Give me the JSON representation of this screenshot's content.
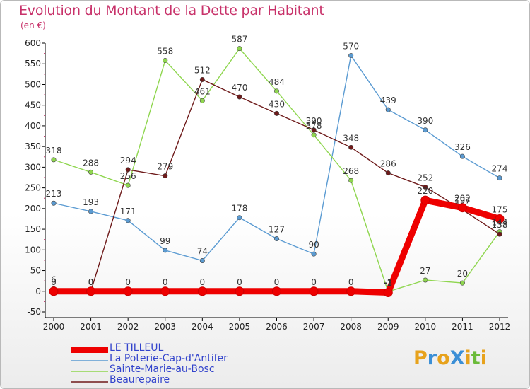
{
  "header": {
    "title": "Evolution du Montant de la Dette par Habitant",
    "subtitle": "(en €)"
  },
  "logo": {
    "text": "ProXiti",
    "letters": [
      "P",
      "r",
      "o",
      "X",
      "i",
      "t",
      "i"
    ],
    "colors": [
      "#e7a21c",
      "#3b8fd6",
      "#e7a21c",
      "#3b8fd6",
      "#e7a21c",
      "#6bbb3a",
      "#e7a21c"
    ]
  },
  "chart_data": {
    "type": "line",
    "title": "Evolution du Montant de la Dette par Habitant",
    "ylabel": "(en €)",
    "xlabel": "",
    "x": [
      "2000",
      "2001",
      "2002",
      "2003",
      "2004",
      "2005",
      "2006",
      "2007",
      "2008",
      "2009",
      "2010",
      "2011",
      "2012"
    ],
    "ylim": [
      -50,
      600
    ],
    "yticks": [
      "-50",
      "0",
      "50",
      "100",
      "150",
      "200",
      "250",
      "300",
      "350",
      "400",
      "450",
      "500",
      "550",
      "600"
    ],
    "ytick_values": [
      -50,
      0,
      50,
      100,
      150,
      200,
      250,
      300,
      350,
      400,
      450,
      500,
      550,
      600
    ],
    "grid": false,
    "legend_position": "bottom-left",
    "series": [
      {
        "name": "La Poterie-Cap-d'Antifer",
        "color": "#5b9bd2",
        "values": [
          213,
          193,
          171,
          99,
          74,
          178,
          127,
          90,
          570,
          439,
          390,
          326,
          274
        ],
        "labels": [
          "213",
          "193",
          "171",
          "99",
          "74",
          "178",
          "127",
          "90",
          "570",
          "439",
          "390",
          "326",
          "274"
        ]
      },
      {
        "name": "Sainte-Marie-au-Bosc",
        "color": "#8fd64f",
        "values": [
          318,
          288,
          256,
          558,
          461,
          587,
          484,
          378,
          268,
          -1,
          27,
          20,
          144
        ],
        "labels": [
          "318",
          "288",
          "256",
          "558",
          "461",
          "587",
          "484",
          "378",
          "268",
          "-1",
          "27",
          "20",
          "144"
        ]
      },
      {
        "name": "Beaurepaire",
        "color": "#6e1a1a",
        "values": [
          6,
          0,
          294,
          279,
          512,
          470,
          430,
          390,
          348,
          286,
          252,
          197,
          138
        ],
        "labels": [
          "6",
          "0",
          "294",
          "279",
          "512",
          "470",
          "430",
          "390",
          "348",
          "286",
          "252",
          "197",
          "138"
        ]
      },
      {
        "name": "LE TILLEUL",
        "color": "#ee0000",
        "values": [
          0,
          0,
          0,
          0,
          0,
          0,
          0,
          0,
          0,
          -3,
          220,
          202,
          175
        ],
        "labels": [
          "0",
          "0",
          "0",
          "0",
          "0",
          "0",
          "0",
          "0",
          "0",
          "-3",
          "220",
          "202",
          "175"
        ]
      }
    ],
    "legend": [
      "LE TILLEUL",
      "La Poterie-Cap-d'Antifer",
      "Sainte-Marie-au-Bosc",
      "Beaurepaire"
    ]
  }
}
